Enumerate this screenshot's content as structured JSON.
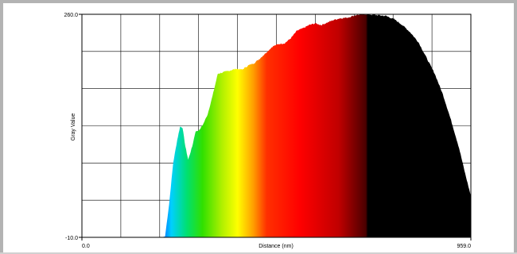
{
  "chart_data": {
    "type": "area",
    "title": "",
    "xlabel": "Distance (nm)",
    "ylabel": "Gray Value",
    "xlim": [
      0.0,
      959.0
    ],
    "ylim": [
      -10.0,
      260.0
    ],
    "tick_labels": {
      "x_min": "0.0",
      "x_max": "959.0",
      "y_min": "-10.0",
      "y_max": "260.0"
    },
    "grid": true,
    "fill": "lookup-table gradient from x (black, violet, blue, cyan, green, yellow, orange, red, dark red, black)",
    "series": [
      {
        "x": [
          0,
          60,
          120,
          195,
          205,
          215,
          225,
          235,
          242,
          248,
          255,
          262,
          272,
          280,
          290,
          300,
          310,
          322,
          335,
          350,
          365,
          380,
          395,
          410,
          425,
          440,
          455,
          470,
          485,
          500,
          515,
          530,
          545,
          560,
          575,
          590,
          605,
          620,
          635,
          655,
          675,
          700,
          725,
          750,
          770,
          790,
          810,
          830,
          850,
          870,
          890,
          910,
          930,
          945,
          959
        ],
        "y": [
          -10,
          -10,
          -10,
          -10,
          -9,
          30,
          80,
          108,
          124,
          123,
          100,
          84,
          100,
          118,
          120,
          128,
          139,
          161,
          188,
          190,
          192,
          194,
          193,
          198,
          201,
          207,
          214,
          221,
          224,
          225,
          231,
          240,
          243,
          247,
          249,
          247,
          250,
          253,
          255,
          256,
          259,
          260,
          259,
          258,
          254,
          247,
          238,
          226,
          207,
          188,
          163,
          132,
          98,
          67,
          40
        ]
      }
    ]
  }
}
